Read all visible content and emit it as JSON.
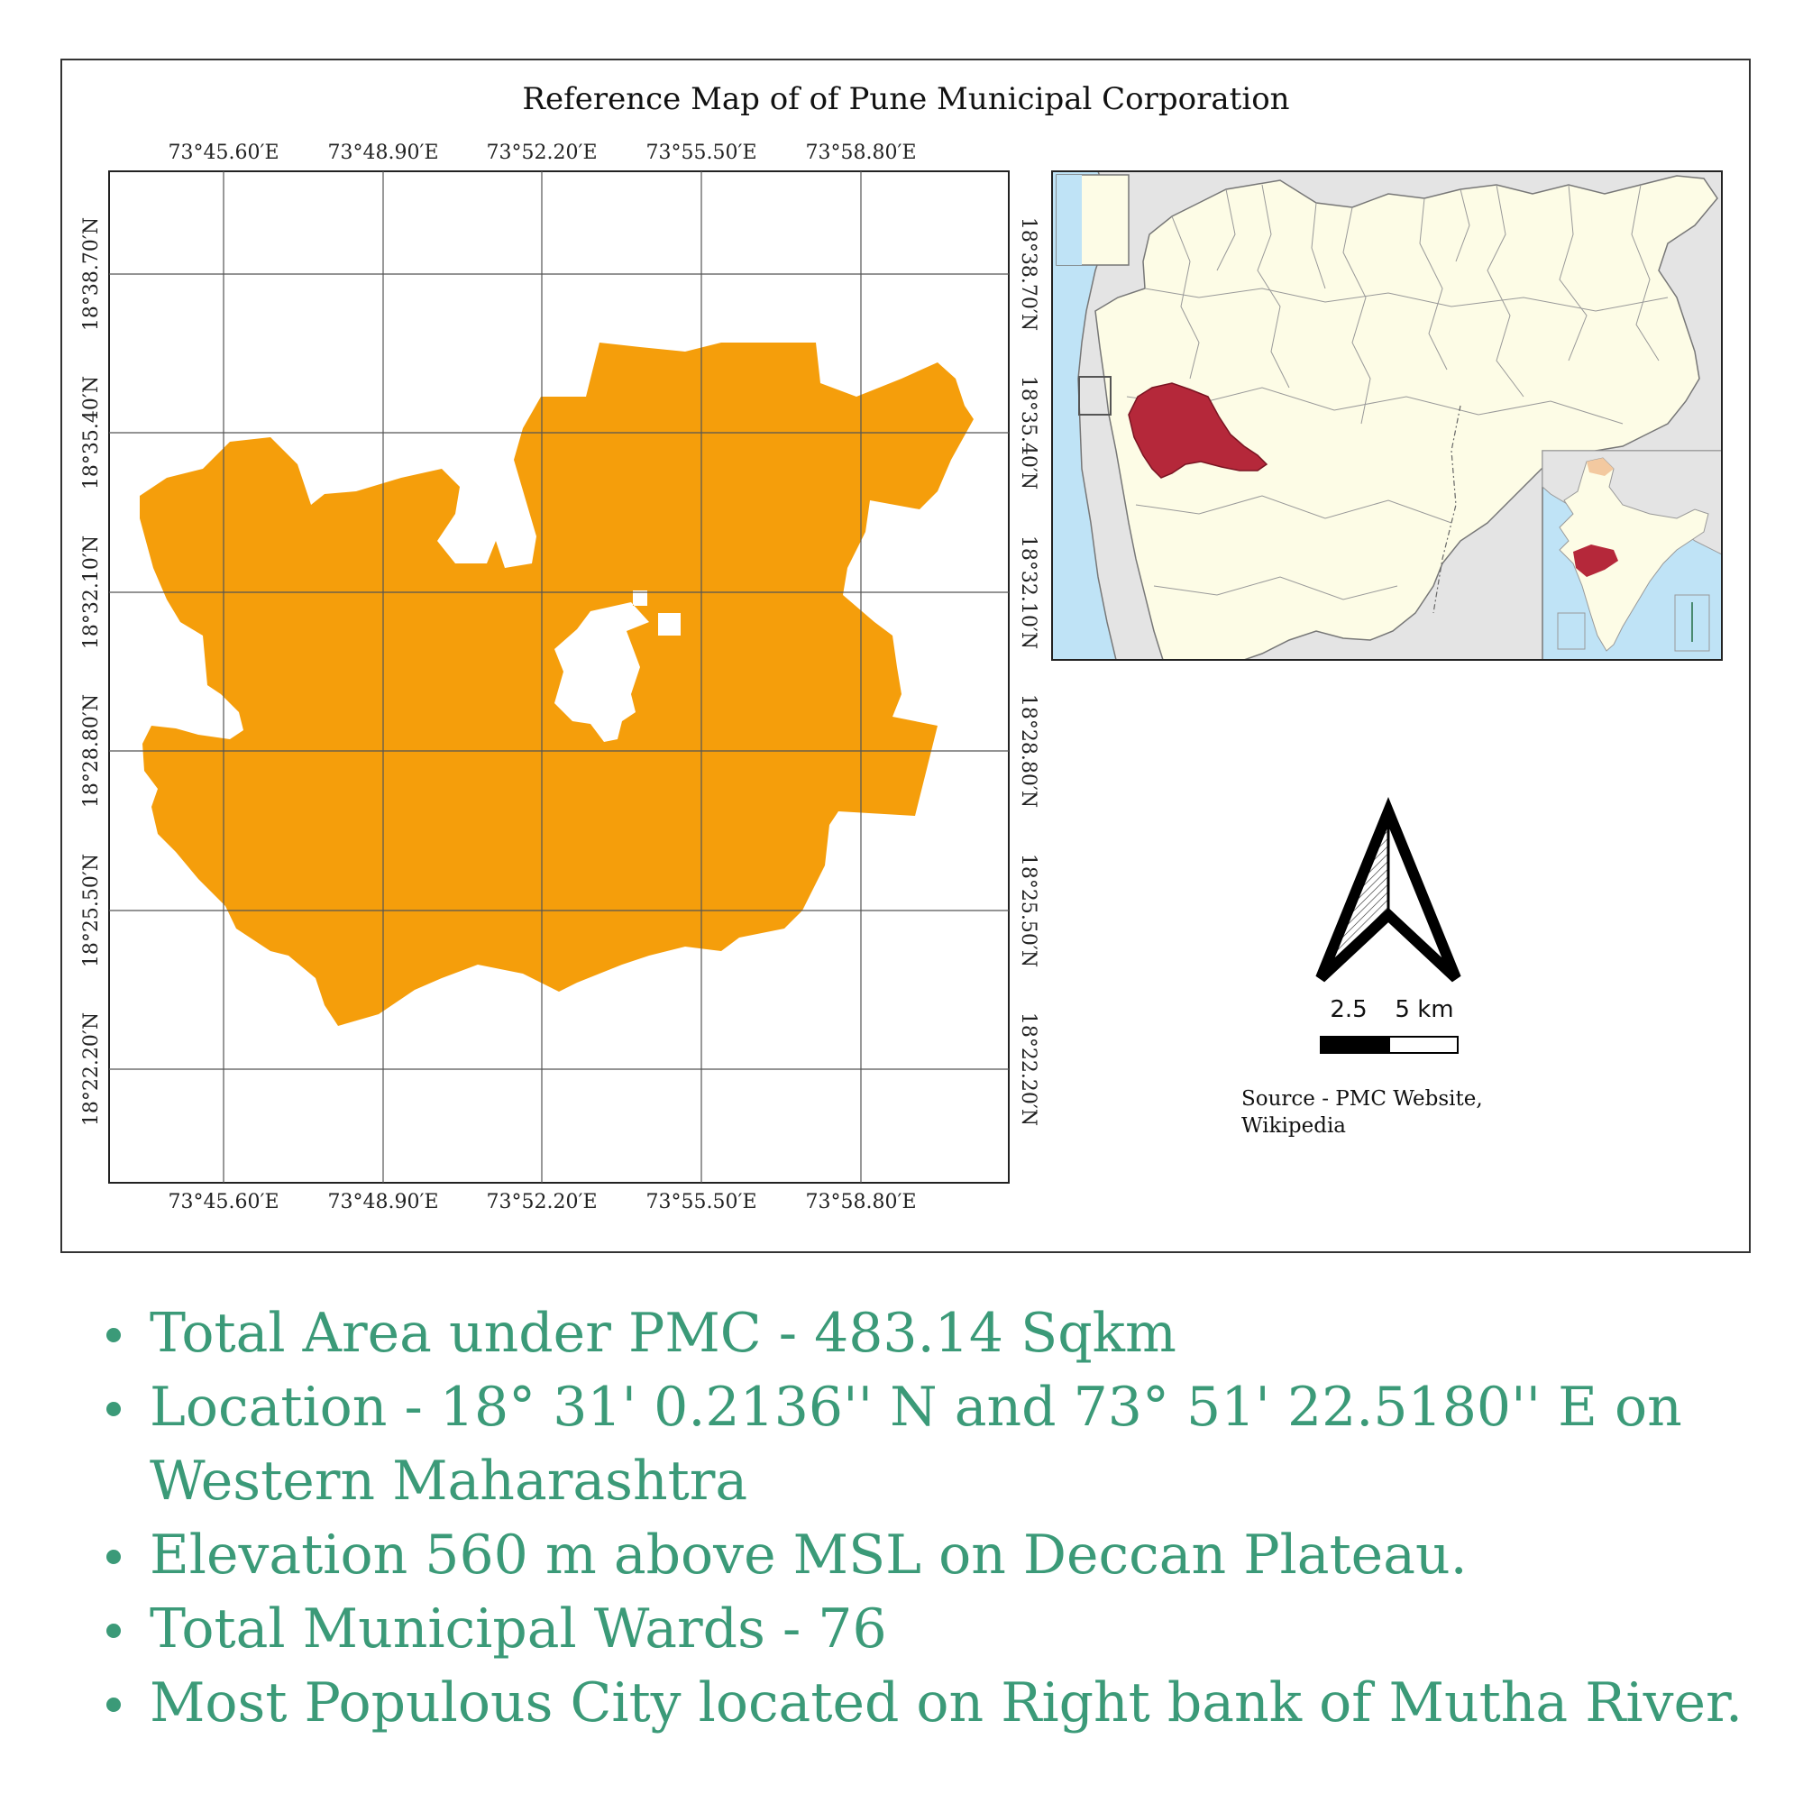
{
  "map": {
    "title": "Reference Map of of Pune Municipal Corporation",
    "longitude_ticks": [
      "73°45.60′E",
      "73°48.90′E",
      "73°52.20′E",
      "73°55.50′E",
      "73°58.80′E"
    ],
    "latitude_ticks": [
      "18°38.70′N",
      "18°35.40′N",
      "18°32.10′N",
      "18°28.80′N",
      "18°25.50′N",
      "18°22.20′N"
    ],
    "scale_labels": [
      "2.5",
      "5 km"
    ],
    "source": "Source - PMC Website, Wikipedia",
    "colors": {
      "pmc_area": "#f59e0b",
      "pune_district": "#b5283a",
      "maharashtra_fill": "#fdfce6",
      "sea": "#bfe3f6",
      "bullet_text": "#3b9a78"
    },
    "icons": [
      "north-arrow-icon"
    ]
  },
  "facts": [
    "Total Area under PMC - 483.14 Sqkm",
    "Location - 18° 31' 0.2136'' N and 73° 51' 22.5180'' E on Western Maharashtra",
    "Elevation 560 m above MSL on Deccan Plateau.",
    "Total Municipal Wards - 76",
    "Most Populous City located on Right bank of Mutha River."
  ]
}
